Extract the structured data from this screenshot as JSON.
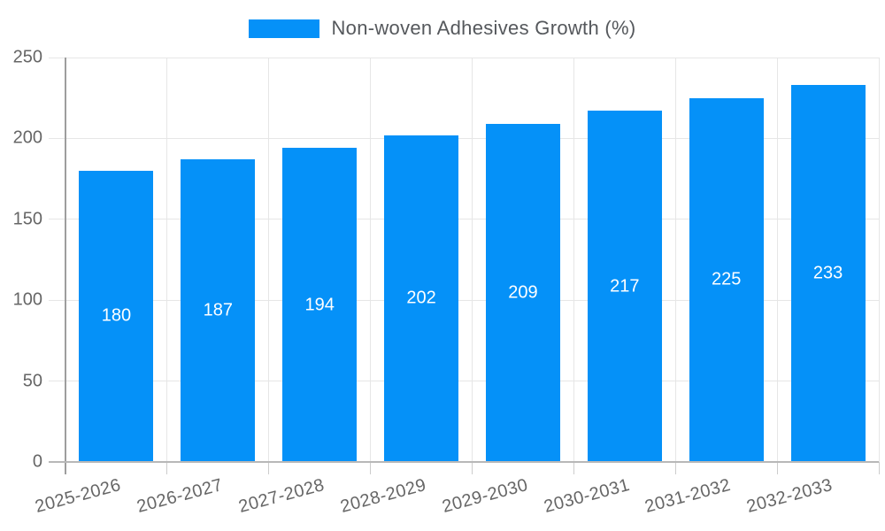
{
  "legend": {
    "label": "Non-woven Adhesives Growth (%)"
  },
  "colors": {
    "bar": "#0591f8",
    "grid": "#e6e6e6",
    "axis_line": "#9e9e9e",
    "baseline": "#b8b8b8",
    "tick": "#cccccc",
    "tick_label_text": "#666666",
    "legend_text": "#55585c",
    "value_label_text": "#ffffff",
    "background": "#ffffff"
  },
  "chart_data": {
    "type": "bar",
    "title": "",
    "xlabel": "",
    "ylabel": "",
    "legend_position": "top",
    "grid": true,
    "value_labels_position": "inside-center",
    "series_name": "Non-woven Adhesives Growth (%)",
    "categories": [
      "2025-2026",
      "2026-2027",
      "2027-2028",
      "2028-2029",
      "2029-2030",
      "2030-2031",
      "2031-2032",
      "2032-2033"
    ],
    "values": [
      180,
      187,
      194,
      202,
      209,
      217,
      225,
      233
    ],
    "ylim": [
      0,
      250
    ],
    "yticks": [
      0,
      50,
      100,
      150,
      200,
      250
    ]
  }
}
